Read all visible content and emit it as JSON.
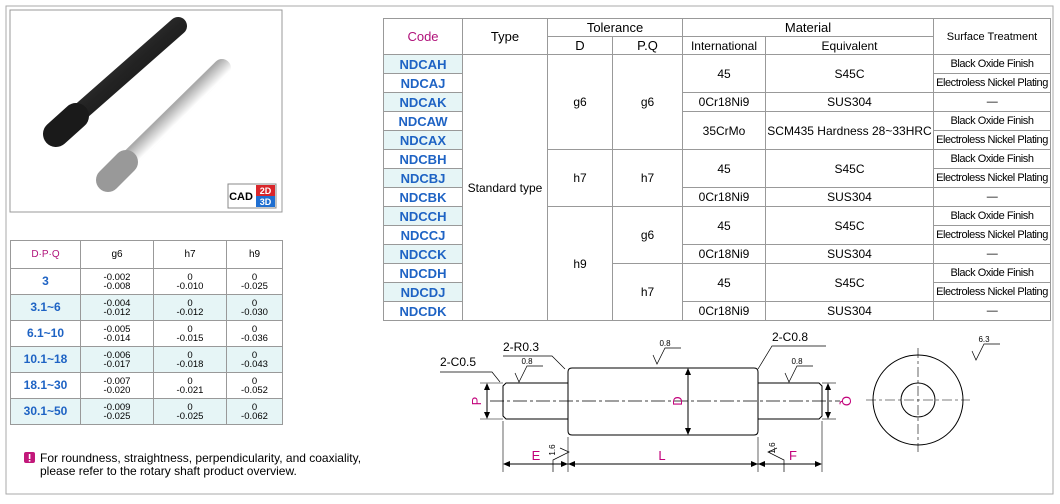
{
  "product_image": {
    "cad_badge": {
      "label": "CAD",
      "d2": "2D",
      "d3": "3D"
    }
  },
  "tolerance_table": {
    "header": [
      "D·P·Q",
      "g6",
      "h7",
      "h9"
    ],
    "rows": [
      [
        "3",
        [
          "-0.002",
          "-0.008"
        ],
        [
          "0",
          "-0.010"
        ],
        [
          "0",
          "-0.025"
        ]
      ],
      [
        "3.1~6",
        [
          "-0.004",
          "-0.012"
        ],
        [
          "0",
          "-0.012"
        ],
        [
          "0",
          "-0.030"
        ]
      ],
      [
        "6.1~10",
        [
          "-0.005",
          "-0.014"
        ],
        [
          "0",
          "-0.015"
        ],
        [
          "0",
          "-0.036"
        ]
      ],
      [
        "10.1~18",
        [
          "-0.006",
          "-0.017"
        ],
        [
          "0",
          "-0.018"
        ],
        [
          "0",
          "-0.043"
        ]
      ],
      [
        "18.1~30",
        [
          "-0.007",
          "-0.020"
        ],
        [
          "0",
          "-0.021"
        ],
        [
          "0",
          "-0.052"
        ]
      ],
      [
        "30.1~50",
        [
          "-0.009",
          "-0.025"
        ],
        [
          "0",
          "-0.025"
        ],
        [
          "0",
          "-0.062"
        ]
      ]
    ]
  },
  "note": {
    "lines": [
      "For roundness, straightness, perpendicularity, and coaxiality,",
      "please refer to the rotary shaft product overview."
    ]
  },
  "spec_table": {
    "header": {
      "code": "Code",
      "type": "Type",
      "tolerance": "Tolerance",
      "tol_d": "D",
      "tol_pq": "P.Q",
      "material": "Material",
      "international": "International",
      "equivalent": "Equivalent",
      "surface": "Surface Treatment"
    },
    "columns": {
      "code": [
        "NDCAH",
        "NDCAJ",
        "NDCAK",
        "NDCAW",
        "NDCAX",
        "NDCBH",
        "NDCBJ",
        "NDCBK",
        "NDCCH",
        "NDCCJ",
        "NDCCK",
        "NDCDH",
        "NDCDJ",
        "NDCDK"
      ],
      "type": [
        "Standard type",
        null,
        null,
        null,
        null,
        null,
        null,
        null,
        null,
        null,
        null,
        null,
        null,
        null
      ],
      "d": [
        "g6",
        null,
        null,
        null,
        null,
        "h7",
        null,
        null,
        "h9",
        null,
        null,
        null,
        null,
        null
      ],
      "pq": [
        "g6",
        null,
        null,
        null,
        null,
        "h7",
        null,
        null,
        "g6",
        null,
        null,
        "h7",
        null,
        null
      ],
      "international": [
        "45",
        null,
        "0Cr18Ni9",
        "35CrMo",
        null,
        "45",
        null,
        "0Cr18Ni9",
        "45",
        null,
        "0Cr18Ni9",
        "45",
        null,
        "0Cr18Ni9"
      ],
      "equivalent": [
        "S45C",
        null,
        "SUS304",
        "SCM435 Hardness 28~33HRC",
        null,
        "S45C",
        null,
        "SUS304",
        "S45C",
        null,
        "SUS304",
        "S45C",
        null,
        "SUS304"
      ],
      "surface": [
        "Black Oxide Finish",
        "Electroless Nickel Plating",
        "—",
        "Black Oxide Finish",
        "Electroless Nickel Plating",
        "Black Oxide Finish",
        "Electroless Nickel Plating",
        "—",
        "Black Oxide Finish",
        "Electroless Nickel Plating",
        "—",
        "Black Oxide Finish",
        "Electroless Nickel Plating",
        "—"
      ]
    }
  },
  "diagram": {
    "chamfer_left": "2-C0.5",
    "radius": "2-R0.3",
    "chamfer_right": "2-C0.8",
    "roughness_left": "0.8",
    "roughness_mid": "0.8",
    "roughness_right": "0.8",
    "roughness_end": "6.3",
    "roughness_step_left": "1.6",
    "roughness_step_right": "1.6",
    "dim_p": "P",
    "dim_d": "D",
    "dim_q": "Q",
    "dim_e": "E",
    "dim_l": "L",
    "dim_f": "F"
  }
}
